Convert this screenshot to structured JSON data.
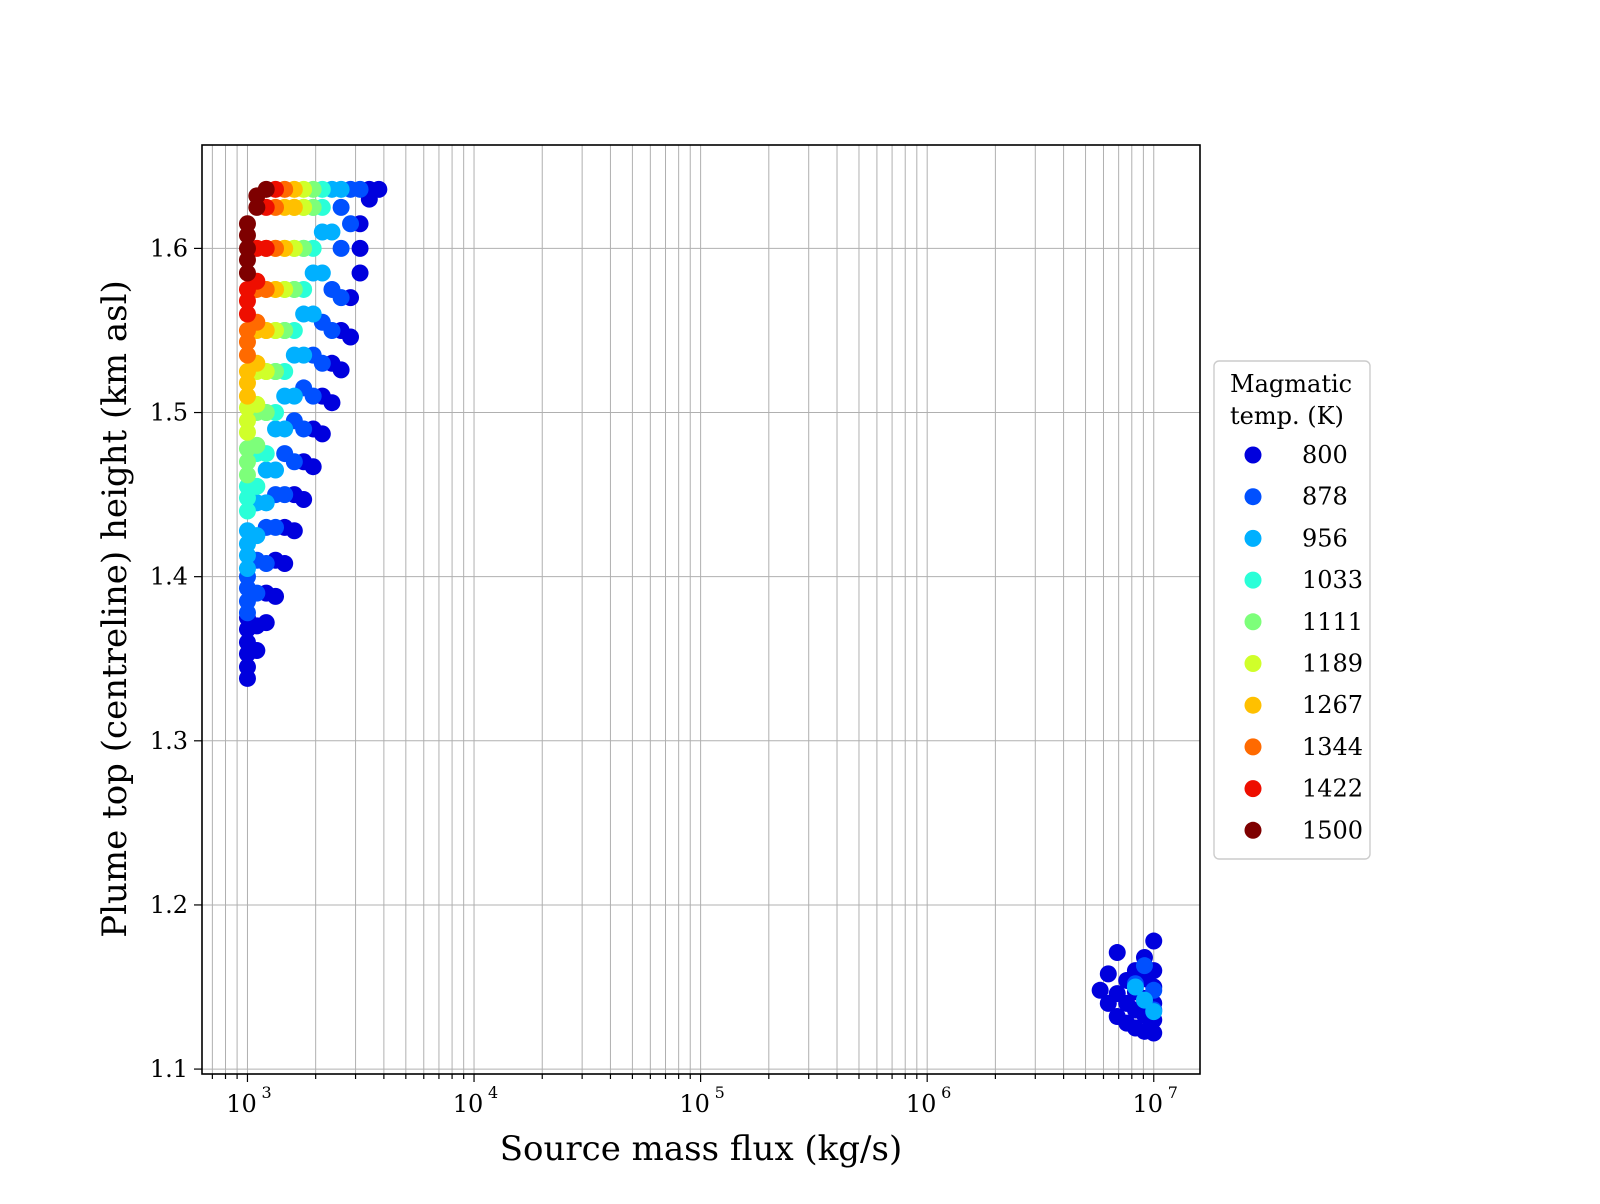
{
  "chart_data": {
    "type": "scatter",
    "xlabel": "Source mass flux (kg/s)",
    "ylabel": "Plume top (centreline) height (km asl)",
    "xscale": "log",
    "xlim": [
      630,
      16000000
    ],
    "ylim": [
      1.097,
      1.663
    ],
    "grid": true,
    "grid_minor_x": true,
    "x_ticks": [
      {
        "base": "10",
        "exp": "3",
        "value": 1000
      },
      {
        "base": "10",
        "exp": "4",
        "value": 10000
      },
      {
        "base": "10",
        "exp": "5",
        "value": 100000
      },
      {
        "base": "10",
        "exp": "6",
        "value": 1000000
      },
      {
        "base": "10",
        "exp": "7",
        "value": 10000000
      }
    ],
    "y_ticks": [
      "1.1",
      "1.2",
      "1.3",
      "1.4",
      "1.5",
      "1.6"
    ],
    "legend": {
      "title_lines": [
        "Magmatic",
        "temp. (K)"
      ],
      "placement": "right-outside"
    },
    "series": [
      {
        "name": "800",
        "color": "#0000dd",
        "points": [
          [
            1000,
            1.338
          ],
          [
            1000,
            1.345
          ],
          [
            1000,
            1.353
          ],
          [
            1000,
            1.36
          ],
          [
            1000,
            1.368
          ],
          [
            1000,
            1.375
          ],
          [
            1100,
            1.355
          ],
          [
            1100,
            1.37
          ],
          [
            1210,
            1.372
          ],
          [
            1210,
            1.39
          ],
          [
            1330,
            1.388
          ],
          [
            1330,
            1.41
          ],
          [
            1460,
            1.408
          ],
          [
            1460,
            1.43
          ],
          [
            1610,
            1.428
          ],
          [
            1610,
            1.45
          ],
          [
            1770,
            1.447
          ],
          [
            1770,
            1.47
          ],
          [
            1950,
            1.467
          ],
          [
            1950,
            1.49
          ],
          [
            2140,
            1.487
          ],
          [
            2140,
            1.51
          ],
          [
            2360,
            1.506
          ],
          [
            2360,
            1.53
          ],
          [
            2590,
            1.526
          ],
          [
            2590,
            1.55
          ],
          [
            2850,
            1.546
          ],
          [
            2850,
            1.57
          ],
          [
            3140,
            1.585
          ],
          [
            3140,
            1.6
          ],
          [
            3140,
            1.615
          ],
          [
            3450,
            1.63
          ],
          [
            3450,
            1.636
          ],
          [
            3800,
            1.636
          ],
          [
            5800000,
            1.148
          ],
          [
            6300000,
            1.14
          ],
          [
            6300000,
            1.158
          ],
          [
            6900000,
            1.132
          ],
          [
            6900000,
            1.146
          ],
          [
            6900000,
            1.171
          ],
          [
            7600000,
            1.128
          ],
          [
            7600000,
            1.14
          ],
          [
            7600000,
            1.154
          ],
          [
            8300000,
            1.125
          ],
          [
            8300000,
            1.136
          ],
          [
            8300000,
            1.147
          ],
          [
            8300000,
            1.16
          ],
          [
            9100000,
            1.123
          ],
          [
            9100000,
            1.133
          ],
          [
            9100000,
            1.143
          ],
          [
            9100000,
            1.155
          ],
          [
            9100000,
            1.168
          ],
          [
            10000000,
            1.122
          ],
          [
            10000000,
            1.13
          ],
          [
            10000000,
            1.14
          ],
          [
            10000000,
            1.15
          ],
          [
            10000000,
            1.16
          ],
          [
            10000000,
            1.178
          ]
        ]
      },
      {
        "name": "878",
        "color": "#0050ff",
        "points": [
          [
            1000,
            1.378
          ],
          [
            1000,
            1.385
          ],
          [
            1000,
            1.393
          ],
          [
            1000,
            1.4
          ],
          [
            1100,
            1.39
          ],
          [
            1100,
            1.41
          ],
          [
            1210,
            1.408
          ],
          [
            1210,
            1.43
          ],
          [
            1330,
            1.43
          ],
          [
            1330,
            1.45
          ],
          [
            1460,
            1.45
          ],
          [
            1460,
            1.475
          ],
          [
            1610,
            1.47
          ],
          [
            1610,
            1.495
          ],
          [
            1770,
            1.49
          ],
          [
            1770,
            1.515
          ],
          [
            1950,
            1.51
          ],
          [
            1950,
            1.535
          ],
          [
            2140,
            1.53
          ],
          [
            2140,
            1.555
          ],
          [
            2360,
            1.55
          ],
          [
            2360,
            1.575
          ],
          [
            2590,
            1.57
          ],
          [
            2590,
            1.6
          ],
          [
            2590,
            1.625
          ],
          [
            2850,
            1.615
          ],
          [
            2850,
            1.636
          ],
          [
            3140,
            1.636
          ],
          [
            8300000,
            1.152
          ],
          [
            9100000,
            1.163
          ],
          [
            10000000,
            1.136
          ],
          [
            10000000,
            1.148
          ]
        ]
      },
      {
        "name": "956",
        "color": "#00b0ff",
        "points": [
          [
            1000,
            1.405
          ],
          [
            1000,
            1.413
          ],
          [
            1000,
            1.42
          ],
          [
            1000,
            1.428
          ],
          [
            1100,
            1.425
          ],
          [
            1100,
            1.445
          ],
          [
            1210,
            1.445
          ],
          [
            1210,
            1.465
          ],
          [
            1330,
            1.465
          ],
          [
            1330,
            1.49
          ],
          [
            1460,
            1.49
          ],
          [
            1460,
            1.51
          ],
          [
            1610,
            1.51
          ],
          [
            1610,
            1.535
          ],
          [
            1770,
            1.535
          ],
          [
            1770,
            1.56
          ],
          [
            1950,
            1.56
          ],
          [
            1950,
            1.585
          ],
          [
            2140,
            1.585
          ],
          [
            2140,
            1.61
          ],
          [
            2360,
            1.61
          ],
          [
            2360,
            1.636
          ],
          [
            2590,
            1.636
          ],
          [
            8300000,
            1.15
          ],
          [
            9100000,
            1.142
          ],
          [
            10000000,
            1.135
          ]
        ]
      },
      {
        "name": "1033",
        "color": "#2affd8",
        "points": [
          [
            1000,
            1.44
          ],
          [
            1000,
            1.448
          ],
          [
            1000,
            1.455
          ],
          [
            1100,
            1.455
          ],
          [
            1100,
            1.475
          ],
          [
            1210,
            1.475
          ],
          [
            1210,
            1.5
          ],
          [
            1330,
            1.5
          ],
          [
            1330,
            1.525
          ],
          [
            1460,
            1.525
          ],
          [
            1460,
            1.55
          ],
          [
            1610,
            1.55
          ],
          [
            1610,
            1.575
          ],
          [
            1770,
            1.575
          ],
          [
            1770,
            1.6
          ],
          [
            1950,
            1.6
          ],
          [
            1950,
            1.625
          ],
          [
            2140,
            1.625
          ],
          [
            2140,
            1.636
          ]
        ]
      },
      {
        "name": "1111",
        "color": "#7dff7a",
        "points": [
          [
            1000,
            1.462
          ],
          [
            1000,
            1.47
          ],
          [
            1000,
            1.478
          ],
          [
            1100,
            1.48
          ],
          [
            1100,
            1.5
          ],
          [
            1210,
            1.5
          ],
          [
            1210,
            1.525
          ],
          [
            1330,
            1.525
          ],
          [
            1330,
            1.55
          ],
          [
            1460,
            1.55
          ],
          [
            1460,
            1.575
          ],
          [
            1610,
            1.575
          ],
          [
            1610,
            1.6
          ],
          [
            1770,
            1.6
          ],
          [
            1770,
            1.625
          ],
          [
            1950,
            1.625
          ],
          [
            1950,
            1.636
          ]
        ]
      },
      {
        "name": "1189",
        "color": "#d0ff2a",
        "points": [
          [
            1000,
            1.488
          ],
          [
            1000,
            1.495
          ],
          [
            1000,
            1.503
          ],
          [
            1100,
            1.505
          ],
          [
            1100,
            1.525
          ],
          [
            1210,
            1.525
          ],
          [
            1210,
            1.55
          ],
          [
            1330,
            1.55
          ],
          [
            1330,
            1.575
          ],
          [
            1460,
            1.575
          ],
          [
            1460,
            1.6
          ],
          [
            1610,
            1.6
          ],
          [
            1610,
            1.625
          ],
          [
            1770,
            1.625
          ],
          [
            1770,
            1.636
          ]
        ]
      },
      {
        "name": "1267",
        "color": "#ffc000",
        "points": [
          [
            1000,
            1.51
          ],
          [
            1000,
            1.518
          ],
          [
            1000,
            1.525
          ],
          [
            1100,
            1.53
          ],
          [
            1100,
            1.55
          ],
          [
            1210,
            1.55
          ],
          [
            1210,
            1.575
          ],
          [
            1330,
            1.575
          ],
          [
            1330,
            1.6
          ],
          [
            1460,
            1.6
          ],
          [
            1460,
            1.625
          ],
          [
            1610,
            1.625
          ],
          [
            1610,
            1.636
          ]
        ]
      },
      {
        "name": "1344",
        "color": "#ff6a00",
        "points": [
          [
            1000,
            1.535
          ],
          [
            1000,
            1.543
          ],
          [
            1000,
            1.55
          ],
          [
            1100,
            1.555
          ],
          [
            1100,
            1.575
          ],
          [
            1210,
            1.575
          ],
          [
            1210,
            1.6
          ],
          [
            1330,
            1.6
          ],
          [
            1330,
            1.625
          ],
          [
            1460,
            1.636
          ]
        ]
      },
      {
        "name": "1422",
        "color": "#ee0e00",
        "points": [
          [
            1000,
            1.56
          ],
          [
            1000,
            1.568
          ],
          [
            1000,
            1.575
          ],
          [
            1100,
            1.58
          ],
          [
            1100,
            1.6
          ],
          [
            1210,
            1.6
          ],
          [
            1210,
            1.625
          ],
          [
            1330,
            1.636
          ]
        ]
      },
      {
        "name": "1500",
        "color": "#7e0000",
        "points": [
          [
            1000,
            1.585
          ],
          [
            1000,
            1.593
          ],
          [
            1000,
            1.6
          ],
          [
            1000,
            1.608
          ],
          [
            1000,
            1.615
          ],
          [
            1100,
            1.625
          ],
          [
            1100,
            1.632
          ],
          [
            1210,
            1.636
          ]
        ]
      }
    ]
  }
}
